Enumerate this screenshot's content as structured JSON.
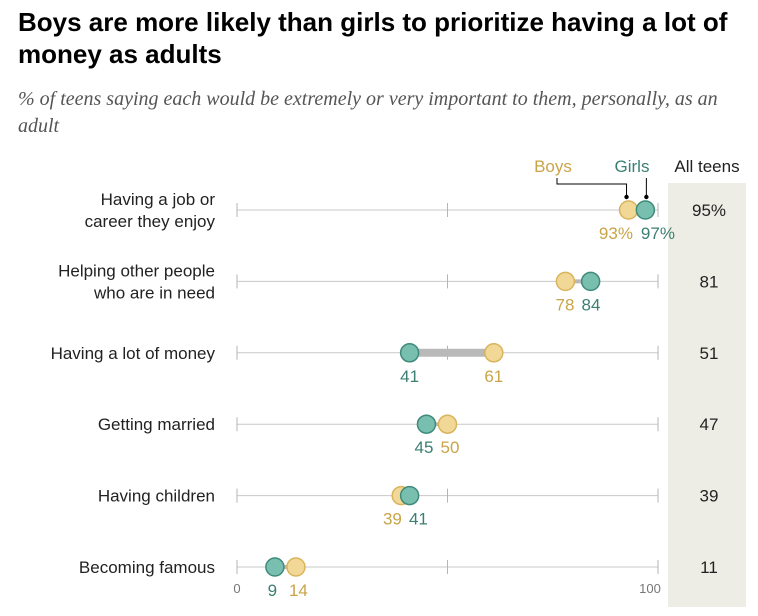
{
  "title": "Boys are more likely than girls to prioritize having a lot of money as adults",
  "subtitle": "% of teens saying each would be extremely or very important to them, personally, as an adult",
  "chart_data": {
    "type": "dot",
    "categories": [
      "Having a job or career they enjoy",
      "Helping other people who are in need",
      "Having a lot of money",
      "Getting married",
      "Having children",
      "Becoming famous"
    ],
    "category_lines": [
      [
        "Having a job or",
        "career they enjoy"
      ],
      [
        "Helping other people",
        "who are in need"
      ],
      [
        "Having a lot of money"
      ],
      [
        "Getting married"
      ],
      [
        "Having children"
      ],
      [
        "Becoming famous"
      ]
    ],
    "series": [
      {
        "name": "Boys",
        "values": [
          93,
          78,
          61,
          50,
          39,
          14
        ],
        "color": "#f2d897",
        "stroke": "#d8b45c",
        "label_color": "#c9a448"
      },
      {
        "name": "Girls",
        "values": [
          97,
          84,
          41,
          45,
          41,
          9
        ],
        "color": "#79bfb0",
        "stroke": "#3f8a7b",
        "label_color": "#3b7f72"
      }
    ],
    "point_labels": {
      "Boys": [
        "93%",
        "78",
        "61",
        "50",
        "39",
        "14"
      ],
      "Girls": [
        "97%",
        "84",
        "41",
        "45",
        "41",
        "9"
      ]
    },
    "all_teens": {
      "label": "All teens",
      "values": [
        "95%",
        "81",
        "51",
        "47",
        "39",
        "11"
      ],
      "panel_color": "#eeede5"
    },
    "xlim": [
      0,
      100
    ],
    "x_tick_labels": [
      "0",
      "100"
    ],
    "highlight_row": 2
  }
}
